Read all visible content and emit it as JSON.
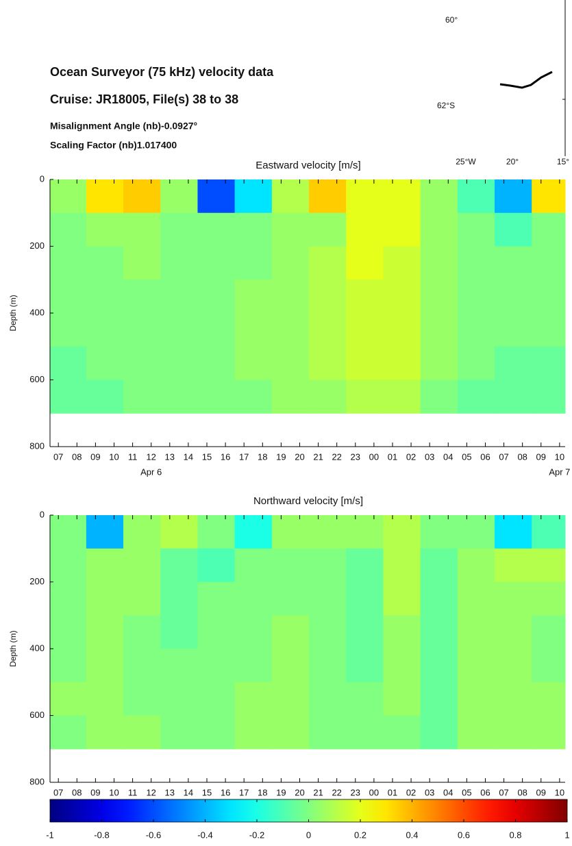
{
  "header": {
    "title": "Ocean Surveyor (75 kHz) velocity data",
    "cruise": "Cruise:  JR18005, File(s) 38 to 38",
    "misalignment": "Misalignment Angle (nb)-0.0927°",
    "scaling": "Scaling Factor (nb)1.017400"
  },
  "map": {
    "labels": [
      "60°",
      "62°S",
      "25°W",
      "20°",
      "15°"
    ]
  },
  "chart_data": [
    {
      "type": "heatmap",
      "title": "Eastward velocity [m/s]",
      "y_label": "Depth (m)",
      "x": [
        7.5,
        9.5,
        11.5,
        13.5,
        15.5,
        17.5,
        19.5,
        21.5,
        23.5,
        25.5,
        27.5,
        29.5,
        31.5,
        33.5
      ],
      "y": [
        50,
        150,
        250,
        350,
        450,
        550,
        650,
        750
      ],
      "values": [
        [
          0.05,
          0.3,
          0.35,
          0.05,
          -0.6,
          -0.3,
          0.1,
          0.35,
          0.2,
          0.2,
          0.05,
          -0.1,
          -0.4,
          0.3
        ],
        [
          0.0,
          0.05,
          0.05,
          0.0,
          0.0,
          0.0,
          0.05,
          0.05,
          0.2,
          0.2,
          0.05,
          0.0,
          -0.1,
          0.0
        ],
        [
          0.0,
          0.0,
          0.05,
          0.0,
          0.0,
          0.0,
          0.05,
          0.1,
          0.2,
          0.15,
          0.05,
          0.0,
          0.0,
          0.0
        ],
        [
          0.0,
          0.0,
          0.0,
          0.0,
          0.0,
          0.05,
          0.05,
          0.1,
          0.15,
          0.15,
          0.05,
          0.0,
          0.0,
          0.0
        ],
        [
          0.0,
          0.0,
          0.0,
          0.0,
          0.0,
          0.05,
          0.05,
          0.1,
          0.15,
          0.15,
          0.05,
          0.0,
          0.0,
          0.0
        ],
        [
          -0.05,
          0.0,
          0.0,
          0.0,
          0.0,
          0.05,
          0.05,
          0.1,
          0.15,
          0.15,
          0.05,
          0.0,
          -0.05,
          -0.05
        ],
        [
          -0.05,
          -0.05,
          0.0,
          0.0,
          0.0,
          0.0,
          0.05,
          0.05,
          0.1,
          0.1,
          0.0,
          -0.05,
          -0.05,
          -0.05
        ],
        [
          null,
          null,
          null,
          null,
          null,
          null,
          null,
          null,
          null,
          null,
          null,
          null,
          null,
          null
        ]
      ],
      "xlim": [
        6.55,
        34.3
      ],
      "ylim": [
        800,
        0
      ],
      "xticks": [
        {
          "value": 7,
          "label": "07"
        },
        {
          "value": 8,
          "label": "08"
        },
        {
          "value": 9,
          "label": "09"
        },
        10,
        11,
        12,
        13,
        14,
        15,
        16,
        17,
        18,
        19,
        20,
        21,
        22,
        23,
        {
          "value": 24,
          "label": "00"
        },
        {
          "value": 25,
          "label": "01"
        },
        {
          "value": 26,
          "label": "02"
        },
        {
          "value": 27,
          "label": "03"
        },
        {
          "value": 28,
          "label": "04"
        },
        {
          "value": 29,
          "label": "05"
        },
        {
          "value": 30,
          "label": "06"
        },
        {
          "value": 31,
          "label": "07"
        },
        {
          "value": 32,
          "label": "08"
        },
        {
          "value": 33,
          "label": "09"
        },
        {
          "value": 34,
          "label": "10"
        }
      ],
      "yticks": [
        0,
        200,
        400,
        600,
        800
      ],
      "annotations": [
        {
          "text": "Apr 6",
          "x": 12
        },
        {
          "text": "Apr 7",
          "x": 34
        }
      ]
    },
    {
      "type": "heatmap",
      "title": "Northward velocity [m/s]",
      "y_label": "Depth (m)",
      "x": [
        7.5,
        9.5,
        11.5,
        13.5,
        15.5,
        17.5,
        19.5,
        21.5,
        23.5,
        25.5,
        27.5,
        29.5,
        31.5,
        33.5
      ],
      "y": [
        50,
        150,
        250,
        350,
        450,
        550,
        650,
        750
      ],
      "values": [
        [
          0.0,
          -0.4,
          0.05,
          0.1,
          0.0,
          -0.2,
          0.05,
          0.05,
          0.05,
          0.1,
          0.0,
          0.0,
          -0.3,
          -0.1
        ],
        [
          0.0,
          0.05,
          0.05,
          -0.05,
          -0.1,
          0.0,
          0.0,
          0.0,
          -0.05,
          0.1,
          -0.05,
          0.05,
          0.1,
          0.1
        ],
        [
          0.0,
          0.05,
          0.05,
          -0.05,
          0.0,
          0.0,
          0.0,
          0.0,
          -0.05,
          0.1,
          -0.05,
          0.05,
          0.05,
          0.05
        ],
        [
          0.0,
          0.05,
          0.0,
          -0.05,
          0.0,
          0.0,
          0.05,
          0.0,
          -0.05,
          0.05,
          -0.05,
          0.05,
          0.05,
          0.0
        ],
        [
          0.0,
          0.05,
          0.0,
          0.0,
          0.0,
          0.0,
          0.05,
          0.0,
          -0.05,
          0.05,
          -0.05,
          0.05,
          0.05,
          0.0
        ],
        [
          0.05,
          0.05,
          0.0,
          0.0,
          0.0,
          0.05,
          0.05,
          0.0,
          0.0,
          0.05,
          -0.05,
          0.05,
          0.05,
          0.05
        ],
        [
          0.0,
          0.05,
          0.05,
          0.0,
          0.0,
          0.05,
          0.05,
          0.0,
          0.0,
          0.0,
          -0.05,
          0.05,
          0.05,
          0.05
        ],
        [
          null,
          null,
          null,
          null,
          null,
          null,
          null,
          null,
          null,
          null,
          null,
          null,
          null,
          null
        ]
      ],
      "xlim": [
        6.55,
        34.3
      ],
      "ylim": [
        800,
        0
      ],
      "xticks": [
        {
          "value": 7,
          "label": "07"
        },
        {
          "value": 8,
          "label": "08"
        },
        {
          "value": 9,
          "label": "09"
        },
        10,
        11,
        12,
        13,
        14,
        15,
        16,
        17,
        18,
        19,
        20,
        21,
        22,
        23,
        {
          "value": 24,
          "label": "00"
        },
        {
          "value": 25,
          "label": "01"
        },
        {
          "value": 26,
          "label": "02"
        },
        {
          "value": 27,
          "label": "03"
        },
        {
          "value": 28,
          "label": "04"
        },
        {
          "value": 29,
          "label": "05"
        },
        {
          "value": 30,
          "label": "06"
        },
        {
          "value": 31,
          "label": "07"
        },
        {
          "value": 32,
          "label": "08"
        },
        {
          "value": 33,
          "label": "09"
        },
        {
          "value": 34,
          "label": "10"
        }
      ],
      "yticks": [
        0,
        200,
        400,
        600,
        800
      ]
    }
  ],
  "colorbar": {
    "colormap": "jet",
    "clim": [
      -1,
      1
    ],
    "ticks": [
      -1,
      -0.8,
      -0.6,
      -0.4,
      -0.2,
      0,
      0.2,
      0.4,
      0.6,
      0.8,
      1
    ]
  }
}
